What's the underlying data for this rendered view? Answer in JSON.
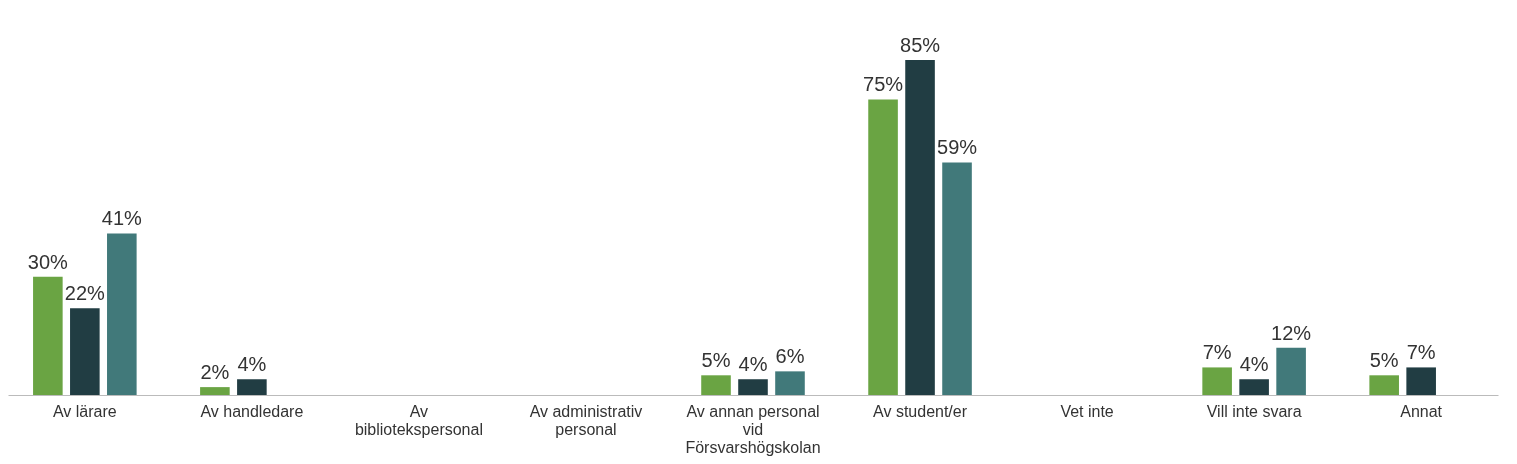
{
  "chart_data": {
    "type": "bar",
    "categories": [
      "Av lärare",
      "Av handledare",
      "Av bibliotekspersonal",
      "Av administrativ personal",
      "Av annan personal vid Försvarshögskolan",
      "Av student/er",
      "Vet inte",
      "Vill inte svara",
      "Annat"
    ],
    "series": [
      {
        "color": "#6aa443",
        "values": [
          30,
          2,
          null,
          null,
          5,
          75,
          null,
          7,
          5
        ],
        "value_labels": [
          "30%",
          "2%",
          null,
          null,
          "5%",
          "75%",
          null,
          "7%",
          "5%"
        ]
      },
      {
        "color": "#213d43",
        "values": [
          22,
          4,
          null,
          null,
          4,
          85,
          null,
          4,
          7
        ],
        "value_labels": [
          "22%",
          "4%",
          null,
          null,
          "4%",
          "85%",
          null,
          "4%",
          "7%"
        ]
      },
      {
        "color": "#41797a",
        "values": [
          41,
          null,
          null,
          null,
          6,
          59,
          null,
          12,
          null
        ],
        "value_labels": [
          "41%",
          null,
          null,
          null,
          "6%",
          "59%",
          null,
          "12%",
          null
        ]
      }
    ],
    "grid": false,
    "legend": false,
    "tick_labels": "x"
  }
}
